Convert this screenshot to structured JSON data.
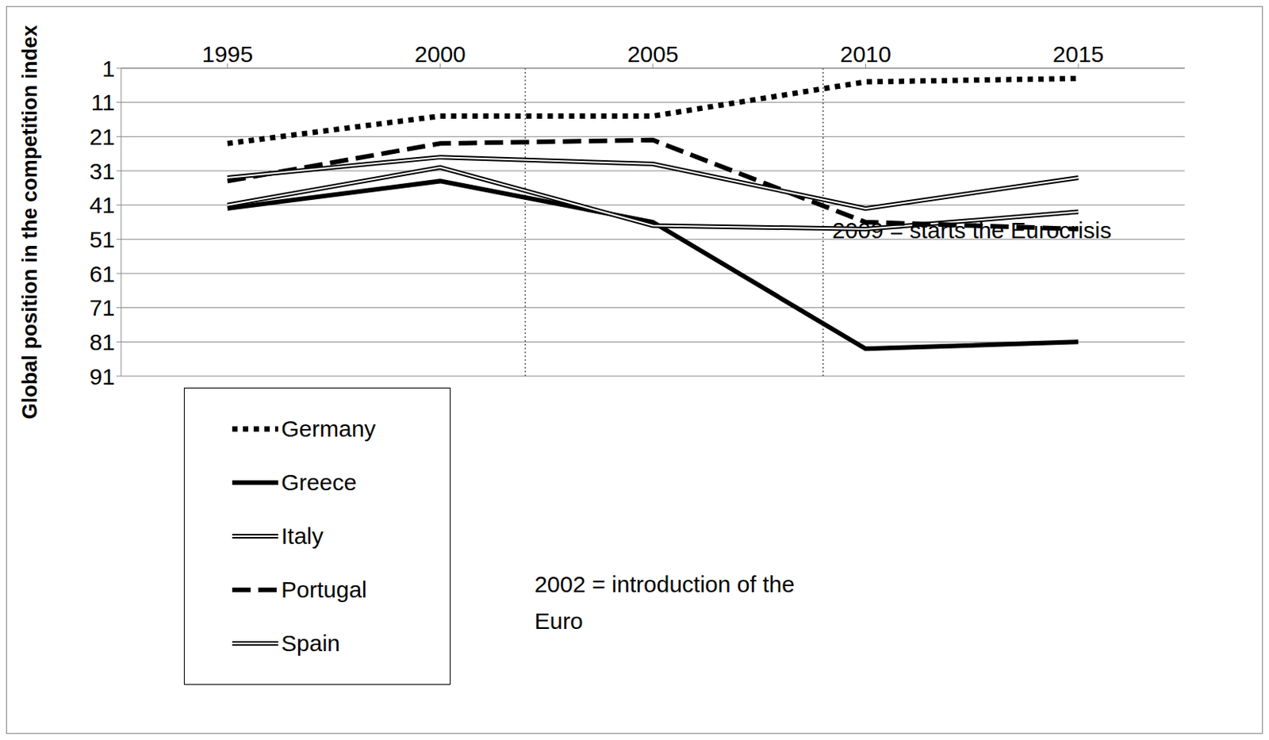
{
  "chart_data": {
    "type": "line",
    "y_label": "Global position in the competition index",
    "x": [
      1995,
      2000,
      2005,
      2010,
      2015
    ],
    "xlim": [
      1992.5,
      2017.5
    ],
    "xticks": [
      1995,
      2000,
      2005,
      2010,
      2015
    ],
    "ylim": [
      1,
      91
    ],
    "yticks": [
      1,
      11,
      21,
      31,
      41,
      51,
      61,
      71,
      81,
      91
    ],
    "grid": true,
    "legend": "lower left",
    "series": [
      {
        "name": "Germany",
        "color": "#000000",
        "line_style": "dotted",
        "values": [
          23,
          15,
          15,
          5,
          4
        ]
      },
      {
        "name": "Greece",
        "color": "#000000",
        "line_style": "solid",
        "values": [
          42,
          34,
          46,
          83,
          81
        ]
      },
      {
        "name": "Italy",
        "color": "#000000",
        "line_style": "double",
        "values": [
          41,
          30,
          47,
          48,
          43
        ]
      },
      {
        "name": "Portugal",
        "color": "#000000",
        "line_style": "dashed",
        "values": [
          34,
          23,
          22,
          46,
          48
        ]
      },
      {
        "name": "Spain",
        "color": "#000000",
        "line_style": "double",
        "values": [
          33,
          27,
          29,
          42,
          33
        ]
      }
    ],
    "annotations": [
      {
        "x": 2002,
        "text": "2002 = introduction of the Euro"
      },
      {
        "x": 2009,
        "text": "2009 = starts the Eurocrisis"
      }
    ]
  }
}
